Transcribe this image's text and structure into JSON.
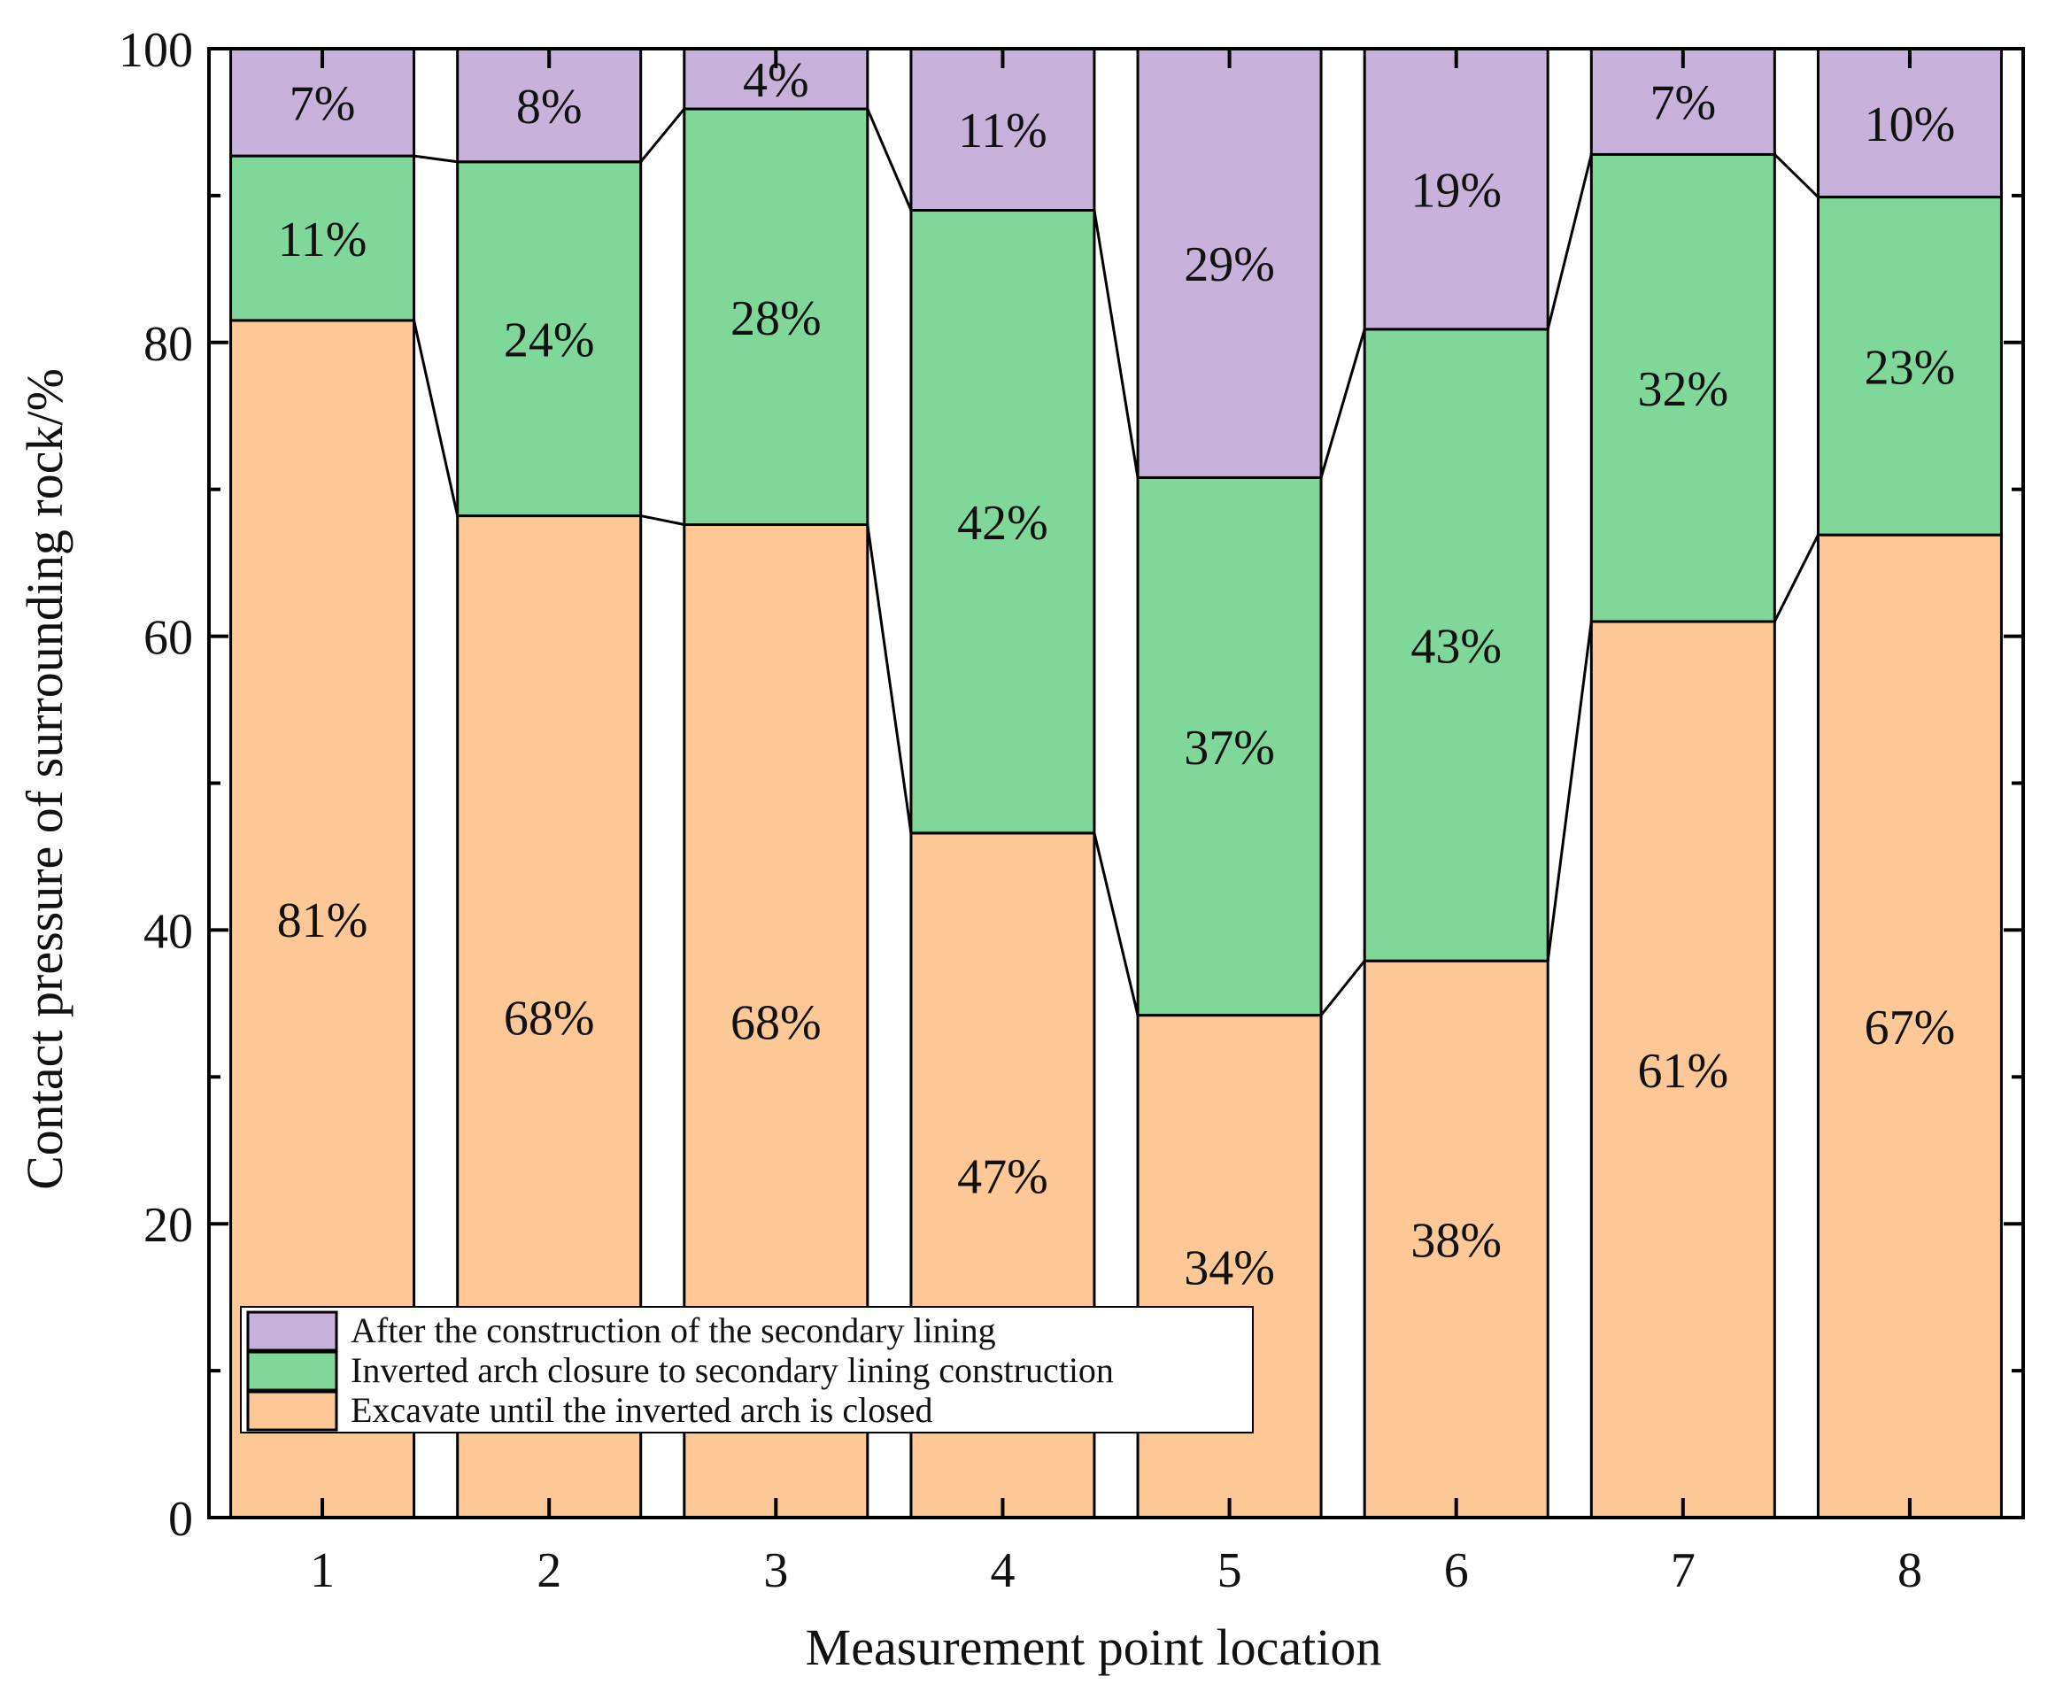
{
  "chart_data": {
    "type": "bar",
    "stacked": true,
    "percent_stacked": true,
    "title": "",
    "xlabel": "Measurement point location",
    "ylabel": "Contact pressure of surrounding rock/%",
    "categories": [
      "1",
      "2",
      "3",
      "4",
      "5",
      "6",
      "7",
      "8"
    ],
    "ylim": [
      0,
      100
    ],
    "yticks": [
      0,
      20,
      40,
      60,
      80,
      100
    ],
    "legend_position": "bottom-left",
    "series": [
      {
        "name": "Excavate until the inverted arch is closed",
        "color": "#fdc896",
        "values": [
          81.5,
          68.2,
          67.6,
          46.6,
          34.2,
          37.9,
          61.0,
          66.9
        ],
        "labels": [
          "81%",
          "68%",
          "68%",
          "47%",
          "34%",
          "38%",
          "61%",
          "67%"
        ]
      },
      {
        "name": "Inverted arch closure to secondary lining construction",
        "color": "#7fd899",
        "values": [
          11.2,
          24.1,
          28.3,
          42.4,
          36.6,
          43.0,
          31.8,
          23.0
        ],
        "labels": [
          "11%",
          "24%",
          "28%",
          "42%",
          "37%",
          "43%",
          "32%",
          "23%"
        ]
      },
      {
        "name": "After the construction of the secondary lining",
        "color": "#c8b2db",
        "values": [
          7.3,
          7.7,
          4.1,
          11.0,
          29.2,
          19.1,
          7.2,
          10.1
        ],
        "labels": [
          "7%",
          "8%",
          "4%",
          "11%",
          "29%",
          "19%",
          "7%",
          "10%"
        ]
      }
    ]
  }
}
